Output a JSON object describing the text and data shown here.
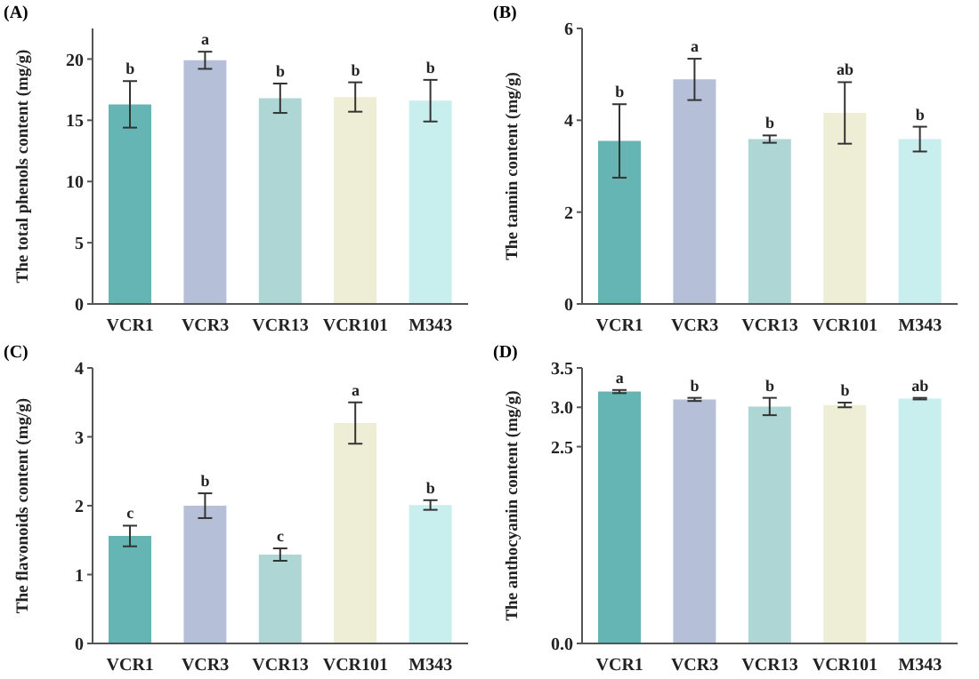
{
  "chart_data": [
    {
      "type": "bar",
      "title": "(A)",
      "ylabel": "The total phenols content (mg/g)",
      "categories": [
        "VCR1",
        "VCR3",
        "VCR13",
        "VCR101",
        "M343"
      ],
      "values": [
        16.3,
        19.9,
        16.8,
        16.9,
        16.6
      ],
      "errors": [
        1.9,
        0.7,
        1.2,
        1.2,
        1.7
      ],
      "colors": [
        "#64b5b3",
        "#b5c0d8",
        "#aed6d4",
        "#eeeed6",
        "#c8eeee"
      ],
      "ylim": [
        0,
        22.5
      ],
      "yticks": [
        0,
        5,
        10,
        15,
        20
      ],
      "grid": false,
      "annotations": [
        "b",
        "a",
        "b",
        "b",
        "b"
      ]
    },
    {
      "type": "bar",
      "title": "(B)",
      "ylabel": "The tannin content (mg/g)",
      "categories": [
        "VCR1",
        "VCR3",
        "VCR13",
        "VCR101",
        "M343"
      ],
      "values": [
        3.55,
        4.89,
        3.59,
        4.16,
        3.59
      ],
      "errors": [
        0.8,
        0.45,
        0.08,
        0.67,
        0.27
      ],
      "colors": [
        "#64b5b3",
        "#b5c0d8",
        "#aed6d4",
        "#eeeed6",
        "#c8eeee"
      ],
      "ylim": [
        0,
        6
      ],
      "yticks": [
        0,
        2,
        4,
        6
      ],
      "grid": false,
      "annotations": [
        "b",
        "a",
        "b",
        "ab",
        "b"
      ]
    },
    {
      "type": "bar",
      "title": "(C)",
      "ylabel": "The flavonoids content (mg/g)",
      "categories": [
        "VCR1",
        "VCR3",
        "VCR13",
        "VCR101",
        "M343"
      ],
      "values": [
        1.56,
        2.0,
        1.29,
        3.2,
        2.01
      ],
      "errors": [
        0.15,
        0.18,
        0.09,
        0.3,
        0.07
      ],
      "colors": [
        "#64b5b3",
        "#b5c0d8",
        "#aed6d4",
        "#eeeed6",
        "#c8eeee"
      ],
      "ylim": [
        0,
        4
      ],
      "yticks": [
        0,
        1,
        2,
        3,
        4
      ],
      "grid": false,
      "annotations": [
        "c",
        "b",
        "c",
        "a",
        "b"
      ]
    },
    {
      "type": "bar",
      "title": "(D)",
      "ylabel": "The anthocyanin content (mg/g)",
      "categories": [
        "VCR1",
        "VCR3",
        "VCR13",
        "VCR101",
        "M343"
      ],
      "values": [
        3.2,
        3.1,
        3.01,
        3.03,
        3.11
      ],
      "errors": [
        0.02,
        0.02,
        0.11,
        0.03,
        0.01
      ],
      "colors": [
        "#64b5b3",
        "#b5c0d8",
        "#aed6d4",
        "#eeeed6",
        "#c8eeee"
      ],
      "ylim": [
        0,
        3.5
      ],
      "yticks": [
        {
          "value": 0,
          "label": "0.0"
        },
        {
          "value": 2.5,
          "label": "2.5"
        },
        {
          "value": 3.0,
          "label": "3.0"
        },
        {
          "value": 3.5,
          "label": "3.5"
        }
      ],
      "grid": false,
      "annotations": [
        "a",
        "b",
        "b",
        "b",
        "ab"
      ]
    }
  ]
}
